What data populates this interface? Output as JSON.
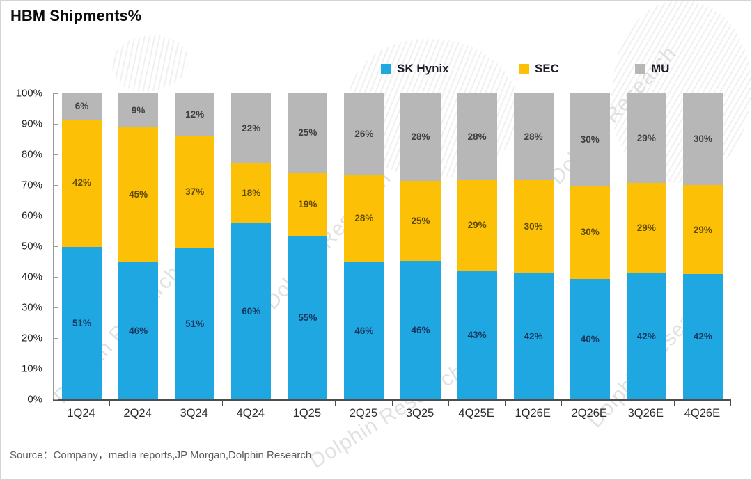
{
  "title": "HBM Shipments%",
  "source": "Source：Company，media reports,JP Morgan,Dolphin Research",
  "watermark_text": "Dolphin Research",
  "colors": {
    "sk_hynix": "#1ea7e0",
    "sec": "#fcc006",
    "mu": "#b7b7b7",
    "axis": "#4d4d4d",
    "label_on_blue": "#17375e",
    "label_on_yellow": "#5f4a00",
    "label_on_gray": "#3f3f3f"
  },
  "legend": [
    {
      "label": "SK Hynix",
      "color": "#1ea7e0"
    },
    {
      "label": "SEC",
      "color": "#fcc006"
    },
    {
      "label": "MU",
      "color": "#b7b7b7"
    }
  ],
  "chart_data": {
    "type": "bar",
    "stacked": true,
    "title": "HBM Shipments%",
    "xlabel": "",
    "ylabel": "",
    "ylim": [
      0,
      100
    ],
    "grid": false,
    "legend_position": "top",
    "yticks": [
      "0%",
      "10%",
      "20%",
      "30%",
      "40%",
      "50%",
      "60%",
      "70%",
      "80%",
      "90%",
      "100%"
    ],
    "categories": [
      "1Q24",
      "2Q24",
      "3Q24",
      "4Q24",
      "1Q25",
      "2Q25",
      "3Q25",
      "4Q25E",
      "1Q26E",
      "2Q26E",
      "3Q26E",
      "4Q26E"
    ],
    "series": [
      {
        "name": "SK Hynix",
        "color": "#1ea7e0",
        "label_color": "#17375e",
        "values": [
          51,
          46,
          51,
          60,
          55,
          46,
          46,
          43,
          42,
          40,
          42,
          42
        ]
      },
      {
        "name": "SEC",
        "color": "#fcc006",
        "label_color": "#5f4a00",
        "values": [
          42,
          45,
          37,
          18,
          19,
          28,
          25,
          29,
          30,
          30,
          29,
          29
        ]
      },
      {
        "name": "MU",
        "color": "#b7b7b7",
        "label_color": "#3f3f3f",
        "values": [
          6,
          9,
          12,
          22,
          25,
          26,
          28,
          28,
          28,
          30,
          29,
          30
        ]
      }
    ]
  }
}
